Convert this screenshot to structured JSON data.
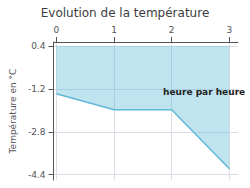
{
  "chart_data": {
    "type": "line",
    "title": "Evolution de la température",
    "ylabel": "Température en °C",
    "x": [
      0,
      1,
      2,
      3
    ],
    "values": [
      -1.38,
      -1.98,
      -1.98,
      -4.18
    ],
    "fill_top": 0.4,
    "color": "#60b8d8",
    "xlim": [
      -0.05,
      3.15
    ],
    "xticks": [
      0,
      1,
      2,
      3
    ],
    "ylim": [
      -4.6,
      0.55
    ],
    "yticks": [
      0.4,
      -1.2,
      -2.8,
      -4.4
    ],
    "grid": true,
    "annotations": [
      {
        "text": "heure par heure",
        "x": 1.85,
        "y": -1.3
      }
    ]
  }
}
